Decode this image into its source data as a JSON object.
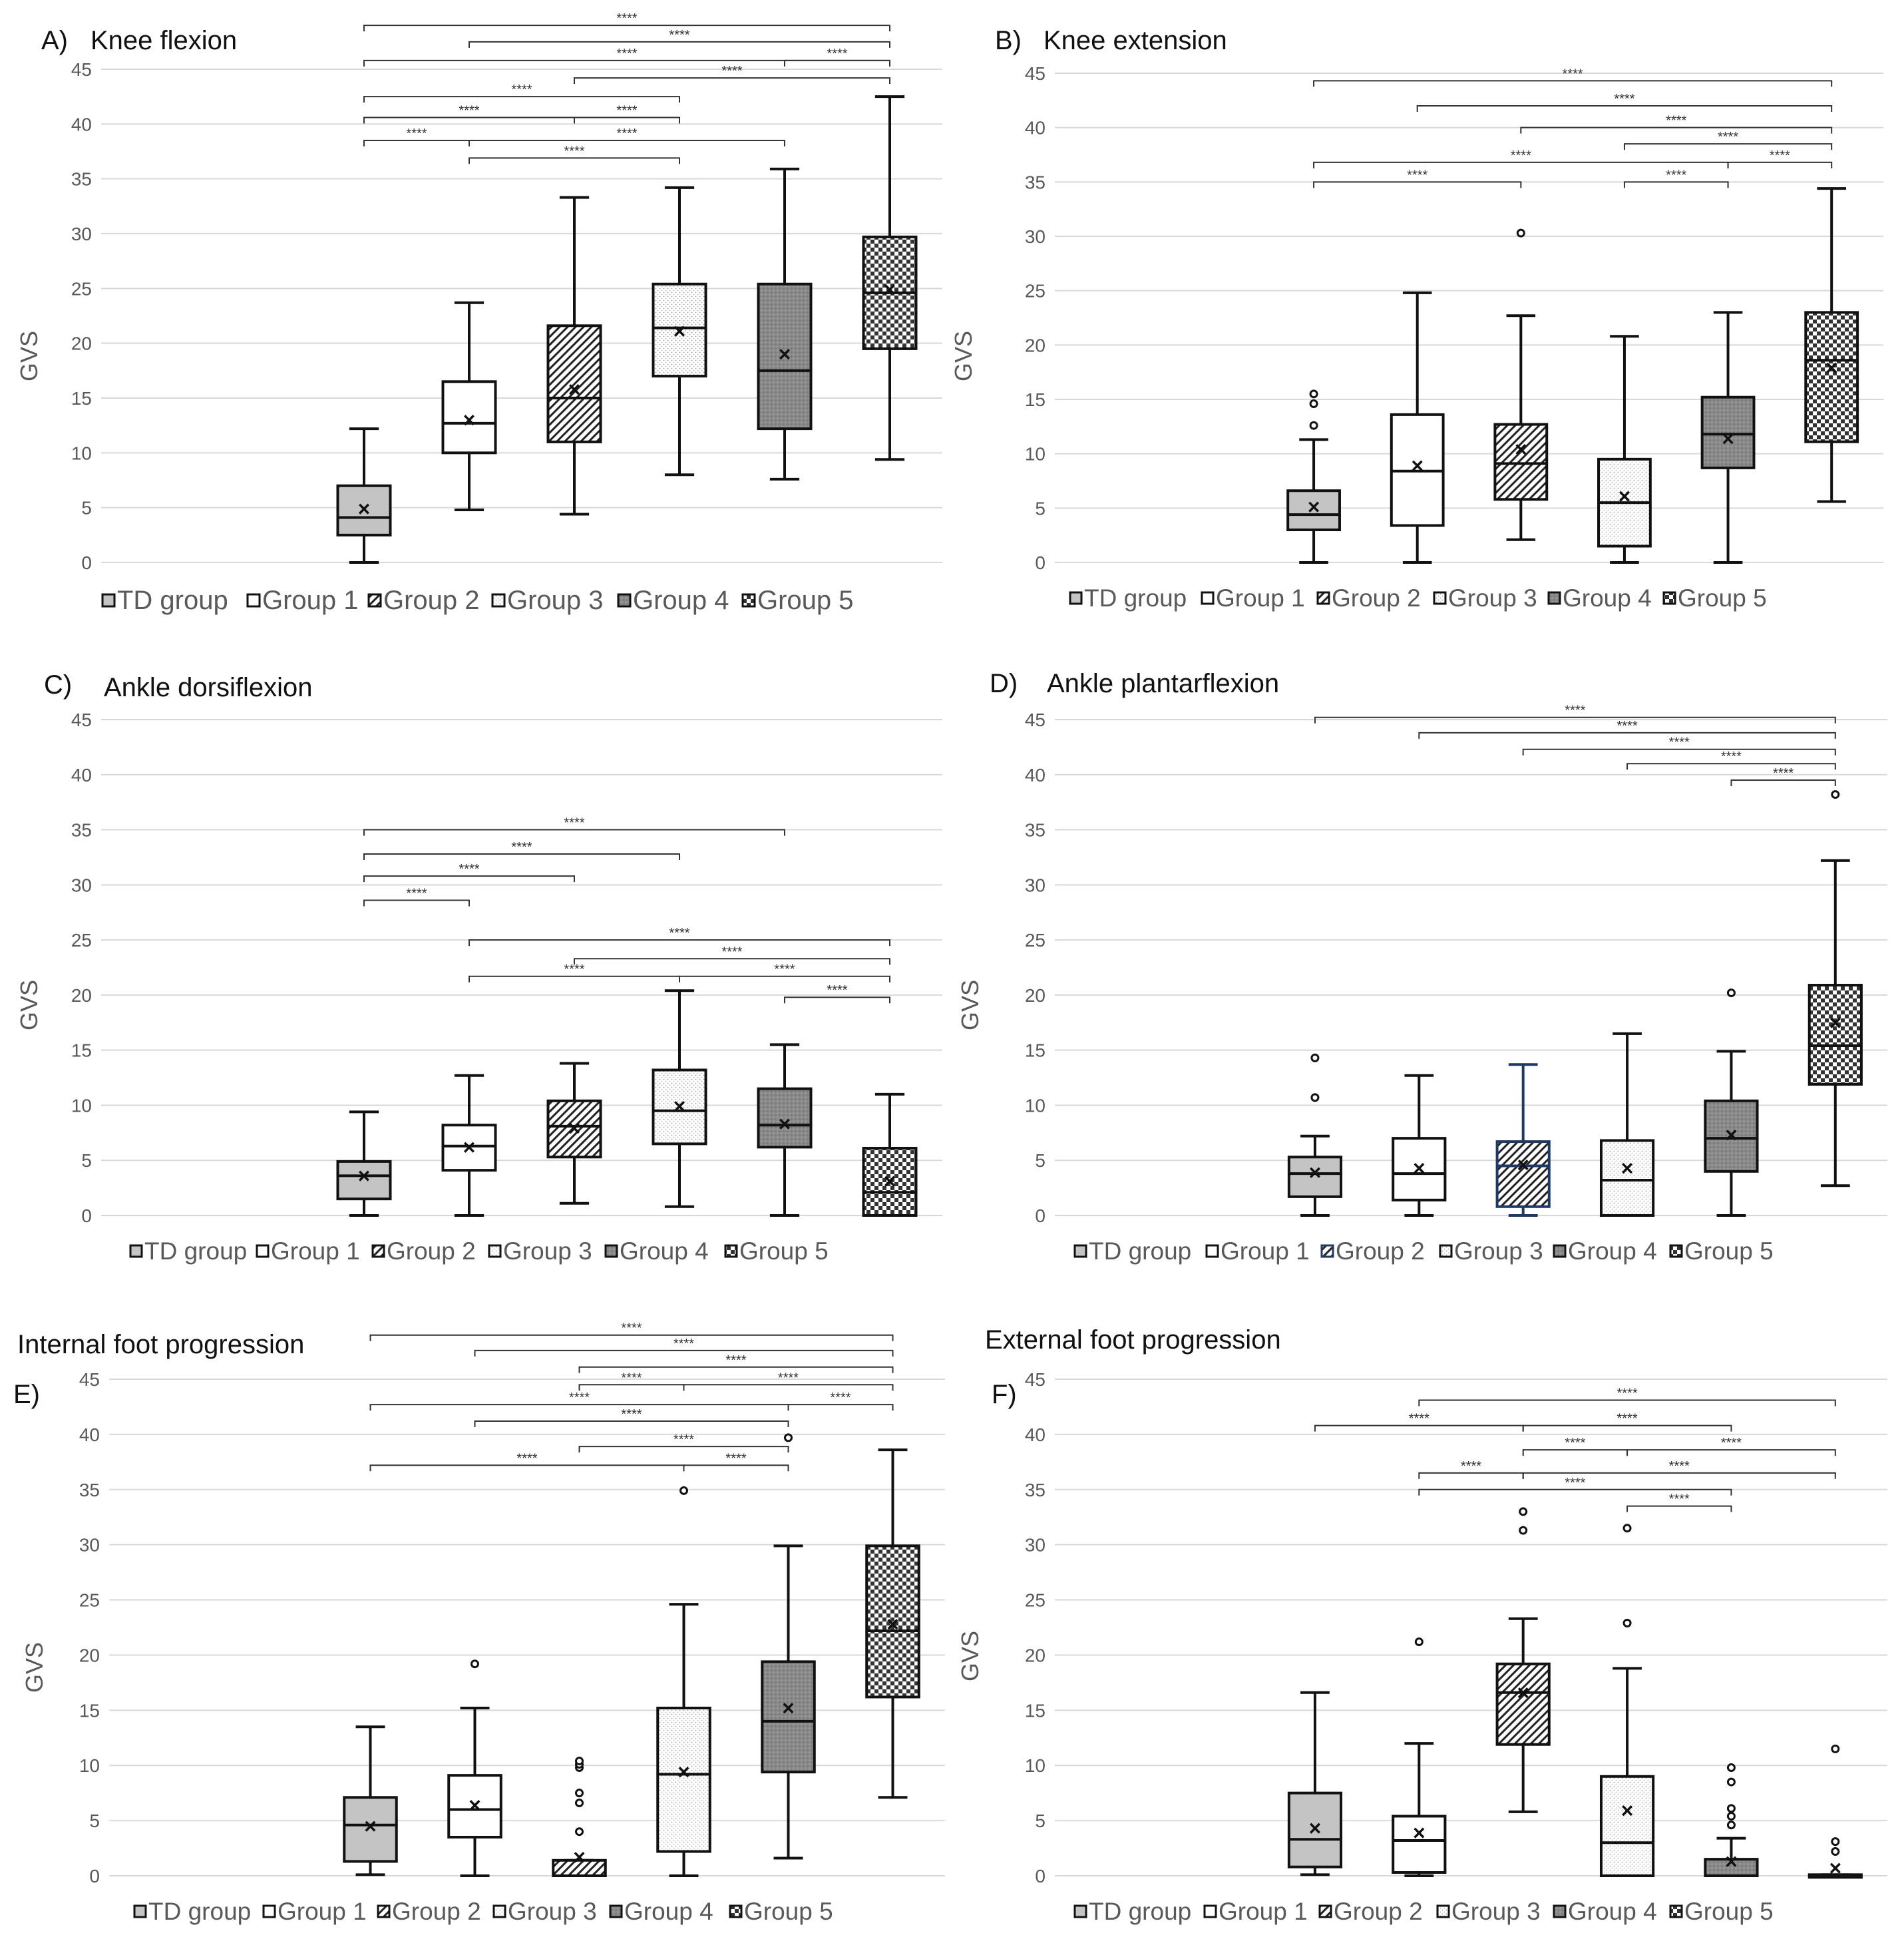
{
  "legend_labels": [
    "TD group",
    "Group 1",
    "Group 2",
    "Group 3",
    "Group 4",
    "Group 5"
  ],
  "colors": {
    "td": "#c4c4c4",
    "g1": "#ffffff",
    "g2": "#ffffff",
    "g3": "#f2f2f2",
    "g4": "#8a8a8a",
    "g5": "#ffffff",
    "g2_blue": "#1f3864",
    "grid": "#d9d9d9",
    "axis_text": "#595959",
    "ink": "#111111"
  },
  "chart_data": [
    {
      "panel": "A)",
      "title": "Knee flexion",
      "type": "box",
      "ylabel": "GVS",
      "ylim": [
        0,
        45
      ],
      "yticks": [
        0,
        5,
        10,
        15,
        20,
        25,
        30,
        35,
        40,
        45
      ],
      "boxes": [
        {
          "group": "TD group",
          "min": 0,
          "q1": 2.5,
          "median": 4.1,
          "q3": 7.0,
          "max": 12.2,
          "mean": 4.9,
          "outliers": []
        },
        {
          "group": "Group 1",
          "min": 4.8,
          "q1": 10.0,
          "median": 12.7,
          "q3": 16.5,
          "max": 23.7,
          "mean": 13.0,
          "outliers": []
        },
        {
          "group": "Group 2",
          "min": 4.4,
          "q1": 11.0,
          "median": 15.0,
          "q3": 21.6,
          "max": 33.3,
          "mean": 15.8,
          "outliers": []
        },
        {
          "group": "Group 3",
          "min": 8.0,
          "q1": 17.0,
          "median": 21.4,
          "q3": 25.4,
          "max": 34.2,
          "mean": 21.1,
          "outliers": []
        },
        {
          "group": "Group 4",
          "min": 7.6,
          "q1": 12.2,
          "median": 17.5,
          "q3": 25.4,
          "max": 35.9,
          "mean": 19.0,
          "outliers": []
        },
        {
          "group": "Group 5",
          "min": 9.4,
          "q1": 19.5,
          "median": 24.6,
          "q3": 29.7,
          "max": 42.5,
          "mean": 24.9,
          "outliers": []
        }
      ],
      "significance": [
        {
          "from": 0,
          "to": 5,
          "value": 49.0,
          "label": "****"
        },
        {
          "from": 1,
          "to": 5,
          "value": 47.5,
          "label": "****"
        },
        {
          "from": 0,
          "to": 5,
          "value": 45.8,
          "label": "****"
        },
        {
          "from": 4,
          "to": 5,
          "value": 45.8,
          "label": "****"
        },
        {
          "from": 2,
          "to": 5,
          "value": 44.2,
          "label": "****"
        },
        {
          "from": 0,
          "to": 3,
          "value": 42.5,
          "label": "****"
        },
        {
          "from": 0,
          "to": 2,
          "value": 40.6,
          "label": "****"
        },
        {
          "from": 2,
          "to": 3,
          "value": 40.6,
          "label": "****"
        },
        {
          "from": 0,
          "to": 1,
          "value": 38.5,
          "label": "****"
        },
        {
          "from": 1,
          "to": 4,
          "value": 38.5,
          "label": "****"
        },
        {
          "from": 1,
          "to": 3,
          "value": 36.9,
          "label": "****"
        }
      ]
    },
    {
      "panel": "B)",
      "title": "Knee extension",
      "type": "box",
      "ylabel": "GVS",
      "ylim": [
        0,
        45
      ],
      "yticks": [
        0,
        5,
        10,
        15,
        20,
        25,
        30,
        35,
        40,
        45
      ],
      "boxes": [
        {
          "group": "TD group",
          "min": 0,
          "q1": 3.0,
          "median": 4.4,
          "q3": 6.6,
          "max": 11.3,
          "mean": 5.1,
          "outliers": [
            12.6,
            14.6,
            15.5
          ]
        },
        {
          "group": "Group 1",
          "min": 0,
          "q1": 3.4,
          "median": 8.4,
          "q3": 13.6,
          "max": 24.8,
          "mean": 8.9,
          "outliers": []
        },
        {
          "group": "Group 2",
          "min": 2.1,
          "q1": 5.8,
          "median": 9.1,
          "q3": 12.7,
          "max": 22.7,
          "mean": 10.4,
          "outliers": [
            30.3
          ]
        },
        {
          "group": "Group 3",
          "min": 0,
          "q1": 1.5,
          "median": 5.5,
          "q3": 9.5,
          "max": 20.8,
          "mean": 6.1,
          "outliers": []
        },
        {
          "group": "Group 4",
          "min": 0,
          "q1": 8.7,
          "median": 11.8,
          "q3": 15.2,
          "max": 23.0,
          "mean": 11.4,
          "outliers": []
        },
        {
          "group": "Group 5",
          "min": 5.6,
          "q1": 11.1,
          "median": 18.6,
          "q3": 23.0,
          "max": 34.4,
          "mean": 17.9,
          "outliers": []
        }
      ],
      "significance": [
        {
          "from": 0,
          "to": 5,
          "value": 44.3,
          "label": "****"
        },
        {
          "from": 1,
          "to": 5,
          "value": 42.0,
          "label": "****"
        },
        {
          "from": 2,
          "to": 5,
          "value": 40.0,
          "label": "****"
        },
        {
          "from": 3,
          "to": 5,
          "value": 38.5,
          "label": "****"
        },
        {
          "from": 0,
          "to": 4,
          "value": 36.8,
          "label": "****"
        },
        {
          "from": 4,
          "to": 5,
          "value": 36.8,
          "label": "****"
        },
        {
          "from": 0,
          "to": 2,
          "value": 35.0,
          "label": "****"
        },
        {
          "from": 3,
          "to": 4,
          "value": 35.0,
          "label": "****"
        }
      ]
    },
    {
      "panel": "C)",
      "title": "Ankle dorsiflexion",
      "type": "box",
      "ylabel": "GVS",
      "ylim": [
        0,
        45
      ],
      "yticks": [
        0,
        5,
        10,
        15,
        20,
        25,
        30,
        35,
        40,
        45
      ],
      "boxes": [
        {
          "group": "TD group",
          "min": 0,
          "q1": 1.5,
          "median": 3.6,
          "q3": 4.9,
          "max": 9.4,
          "mean": 3.6,
          "outliers": []
        },
        {
          "group": "Group 1",
          "min": 0,
          "q1": 4.1,
          "median": 6.3,
          "q3": 8.2,
          "max": 12.7,
          "mean": 6.2,
          "outliers": []
        },
        {
          "group": "Group 2",
          "min": 1.1,
          "q1": 5.3,
          "median": 8.1,
          "q3": 10.4,
          "max": 13.8,
          "mean": 7.9,
          "outliers": []
        },
        {
          "group": "Group 3",
          "min": 0.8,
          "q1": 6.5,
          "median": 9.5,
          "q3": 13.2,
          "max": 20.4,
          "mean": 9.9,
          "outliers": []
        },
        {
          "group": "Group 4",
          "min": 0,
          "q1": 6.2,
          "median": 8.2,
          "q3": 11.5,
          "max": 15.5,
          "mean": 8.3,
          "outliers": []
        },
        {
          "group": "Group 5",
          "min": 0,
          "q1": 0,
          "median": 2.1,
          "q3": 6.1,
          "max": 11.0,
          "mean": 3.1,
          "outliers": []
        }
      ],
      "significance": [
        {
          "from": 0,
          "to": 4,
          "value": 35.0,
          "label": "****"
        },
        {
          "from": 0,
          "to": 3,
          "value": 32.8,
          "label": "****"
        },
        {
          "from": 0,
          "to": 2,
          "value": 30.8,
          "label": "****"
        },
        {
          "from": 0,
          "to": 1,
          "value": 28.6,
          "label": "****"
        },
        {
          "from": 1,
          "to": 5,
          "value": 25.0,
          "label": "****"
        },
        {
          "from": 2,
          "to": 5,
          "value": 23.3,
          "label": "****"
        },
        {
          "from": 1,
          "to": 3,
          "value": 21.7,
          "label": "****"
        },
        {
          "from": 3,
          "to": 5,
          "value": 21.7,
          "label": "****"
        },
        {
          "from": 4,
          "to": 5,
          "value": 19.8,
          "label": "****"
        }
      ]
    },
    {
      "panel": "D)",
      "title": "Ankle plantarflexion",
      "type": "box",
      "ylabel": "GVS",
      "ylim": [
        0,
        45
      ],
      "yticks": [
        0,
        5,
        10,
        15,
        20,
        25,
        30,
        35,
        40,
        45
      ],
      "boxes": [
        {
          "group": "TD group",
          "min": 0,
          "q1": 1.7,
          "median": 3.8,
          "q3": 5.3,
          "max": 7.2,
          "mean": 3.9,
          "outliers": [
            10.7,
            14.3
          ]
        },
        {
          "group": "Group 1",
          "min": 0,
          "q1": 1.4,
          "median": 3.8,
          "q3": 7.0,
          "max": 12.7,
          "mean": 4.3,
          "outliers": []
        },
        {
          "group": "Group 2",
          "min": 0,
          "q1": 0.8,
          "median": 4.5,
          "q3": 6.7,
          "max": 13.7,
          "mean": 4.6,
          "outliers": []
        },
        {
          "group": "Group 3",
          "min": 0,
          "q1": 0,
          "median": 3.2,
          "q3": 6.8,
          "max": 16.5,
          "mean": 4.3,
          "outliers": []
        },
        {
          "group": "Group 4",
          "min": 0,
          "q1": 4.0,
          "median": 7.0,
          "q3": 10.4,
          "max": 14.9,
          "mean": 7.3,
          "outliers": [
            20.2
          ]
        },
        {
          "group": "Group 5",
          "min": 2.7,
          "q1": 11.9,
          "median": 15.4,
          "q3": 20.9,
          "max": 32.2,
          "mean": 17.5,
          "outliers": [
            38.2
          ]
        }
      ],
      "significance": [
        {
          "from": 0,
          "to": 5,
          "value": 45.2,
          "label": "****"
        },
        {
          "from": 1,
          "to": 5,
          "value": 43.8,
          "label": "****"
        },
        {
          "from": 2,
          "to": 5,
          "value": 42.3,
          "label": "****"
        },
        {
          "from": 3,
          "to": 5,
          "value": 41.0,
          "label": "****"
        },
        {
          "from": 4,
          "to": 5,
          "value": 39.5,
          "label": "****"
        }
      ]
    },
    {
      "panel": "E)",
      "title": "Internal foot progression",
      "type": "box",
      "ylabel": "GVS",
      "ylim": [
        0,
        45
      ],
      "yticks": [
        0,
        5,
        10,
        15,
        20,
        25,
        30,
        35,
        40,
        45
      ],
      "boxes": [
        {
          "group": "TD group",
          "min": 0.1,
          "q1": 1.3,
          "median": 4.6,
          "q3": 7.1,
          "max": 13.5,
          "mean": 4.5,
          "outliers": []
        },
        {
          "group": "Group 1",
          "min": 0,
          "q1": 3.5,
          "median": 6.0,
          "q3": 9.1,
          "max": 15.2,
          "mean": 6.4,
          "outliers": [
            19.2
          ]
        },
        {
          "group": "Group 2",
          "min": 0,
          "q1": 0,
          "median": 0,
          "q3": 1.4,
          "max": 1.4,
          "mean": 1.7,
          "outliers": [
            4.0,
            6.6,
            7.5,
            9.8,
            10.1,
            10.4
          ]
        },
        {
          "group": "Group 3",
          "min": 0,
          "q1": 2.2,
          "median": 9.2,
          "q3": 15.2,
          "max": 24.6,
          "mean": 9.4,
          "outliers": [
            34.9
          ]
        },
        {
          "group": "Group 4",
          "min": 1.6,
          "q1": 9.4,
          "median": 14.0,
          "q3": 19.4,
          "max": 29.9,
          "mean": 15.2,
          "outliers": [
            39.7
          ]
        },
        {
          "group": "Group 5",
          "min": 7.1,
          "q1": 16.2,
          "median": 22.2,
          "q3": 29.9,
          "max": 38.6,
          "mean": 22.8,
          "outliers": []
        }
      ],
      "significance": [
        {
          "from": 0,
          "to": 5,
          "value": 49.0,
          "label": "****"
        },
        {
          "from": 1,
          "to": 5,
          "value": 47.6,
          "label": "****"
        },
        {
          "from": 2,
          "to": 5,
          "value": 46.1,
          "label": "****"
        },
        {
          "from": 2,
          "to": 3,
          "value": 44.5,
          "label": "****"
        },
        {
          "from": 3,
          "to": 5,
          "value": 44.5,
          "label": "****"
        },
        {
          "from": 0,
          "to": 4,
          "value": 42.7,
          "label": "****"
        },
        {
          "from": 4,
          "to": 5,
          "value": 42.7,
          "label": "****"
        },
        {
          "from": 1,
          "to": 4,
          "value": 41.2,
          "label": "****"
        },
        {
          "from": 2,
          "to": 4,
          "value": 38.9,
          "label": "****"
        },
        {
          "from": 0,
          "to": 3,
          "value": 37.2,
          "label": "****"
        },
        {
          "from": 3,
          "to": 4,
          "value": 37.2,
          "label": "****"
        }
      ]
    },
    {
      "panel": "F)",
      "title": "External foot progression",
      "type": "box",
      "ylabel": "GVS",
      "ylim": [
        0,
        45
      ],
      "yticks": [
        0,
        5,
        10,
        15,
        20,
        25,
        30,
        35,
        40,
        45
      ],
      "boxes": [
        {
          "group": "TD group",
          "min": 0.1,
          "q1": 0.8,
          "median": 3.3,
          "q3": 7.5,
          "max": 16.6,
          "mean": 4.3,
          "outliers": []
        },
        {
          "group": "Group 1",
          "min": 0,
          "q1": 0.3,
          "median": 3.2,
          "q3": 5.4,
          "max": 12.0,
          "mean": 3.9,
          "outliers": [
            21.2
          ]
        },
        {
          "group": "Group 2",
          "min": 5.8,
          "q1": 11.9,
          "median": 16.6,
          "q3": 19.2,
          "max": 23.3,
          "mean": 16.6,
          "outliers": [
            31.3,
            33.0
          ]
        },
        {
          "group": "Group 3",
          "min": 0,
          "q1": 0,
          "median": 3.0,
          "q3": 9.0,
          "max": 18.8,
          "mean": 5.9,
          "outliers": [
            22.9,
            31.5
          ]
        },
        {
          "group": "Group 4",
          "min": 0,
          "q1": 0,
          "median": 0,
          "q3": 1.5,
          "max": 3.4,
          "mean": 1.3,
          "outliers": [
            4.6,
            5.4,
            6.1,
            8.5,
            9.8
          ]
        },
        {
          "group": "Group 5",
          "min": 0,
          "q1": 0,
          "median": 0,
          "q3": 0.1,
          "max": 0.1,
          "mean": 0.7,
          "outliers": [
            2.2,
            3.1,
            11.5
          ]
        }
      ],
      "significance": [
        {
          "from": 1,
          "to": 5,
          "value": 43.1,
          "label": "****"
        },
        {
          "from": 0,
          "to": 2,
          "value": 40.8,
          "label": "****"
        },
        {
          "from": 2,
          "to": 4,
          "value": 40.8,
          "label": "****"
        },
        {
          "from": 2,
          "to": 3,
          "value": 38.6,
          "label": "****"
        },
        {
          "from": 3,
          "to": 5,
          "value": 38.6,
          "label": "****"
        },
        {
          "from": 1,
          "to": 2,
          "value": 36.5,
          "label": "****"
        },
        {
          "from": 2,
          "to": 5,
          "value": 36.5,
          "label": "****"
        },
        {
          "from": 1,
          "to": 4,
          "value": 35.0,
          "label": "****"
        },
        {
          "from": 3,
          "to": 4,
          "value": 33.5,
          "label": "****"
        }
      ]
    }
  ]
}
